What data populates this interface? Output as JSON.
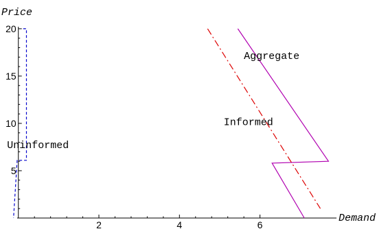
{
  "chart_data": {
    "type": "line",
    "xlabel": "Demand",
    "ylabel": "Price",
    "xlim": [
      -0.2,
      7.9
    ],
    "ylim": [
      0,
      20.5
    ],
    "x_ticks": [
      2,
      4,
      6
    ],
    "y_ticks": [
      5,
      10,
      15,
      20
    ],
    "grid": false,
    "series": [
      {
        "key": "aggregate",
        "color": "#b000b0",
        "dash": "solid",
        "points": [
          [
            5.45,
            20
          ],
          [
            7.7,
            6.0
          ],
          [
            6.3,
            5.8
          ],
          [
            7.1,
            0
          ]
        ]
      },
      {
        "key": "informed",
        "color": "#dd0000",
        "dash": "dashdot",
        "points": [
          [
            4.7,
            20
          ],
          [
            7.5,
            1.0
          ]
        ]
      },
      {
        "key": "uninformed",
        "color": "#0000cc",
        "dash": "dashed",
        "points": [
          [
            0.12,
            20
          ],
          [
            0.2,
            20
          ],
          [
            0.2,
            6.1
          ],
          [
            -0.03,
            6.1
          ],
          [
            -0.12,
            0
          ]
        ]
      }
    ],
    "annotations": [
      {
        "key": "aggregate_label",
        "text": "Aggregate",
        "x": 5.6,
        "y": 16.8
      },
      {
        "key": "informed_label",
        "text": "Informed",
        "x": 5.1,
        "y": 9.8
      },
      {
        "key": "uninformed_label",
        "text": "Uninformed",
        "x": -0.28,
        "y": 7.4
      }
    ]
  }
}
